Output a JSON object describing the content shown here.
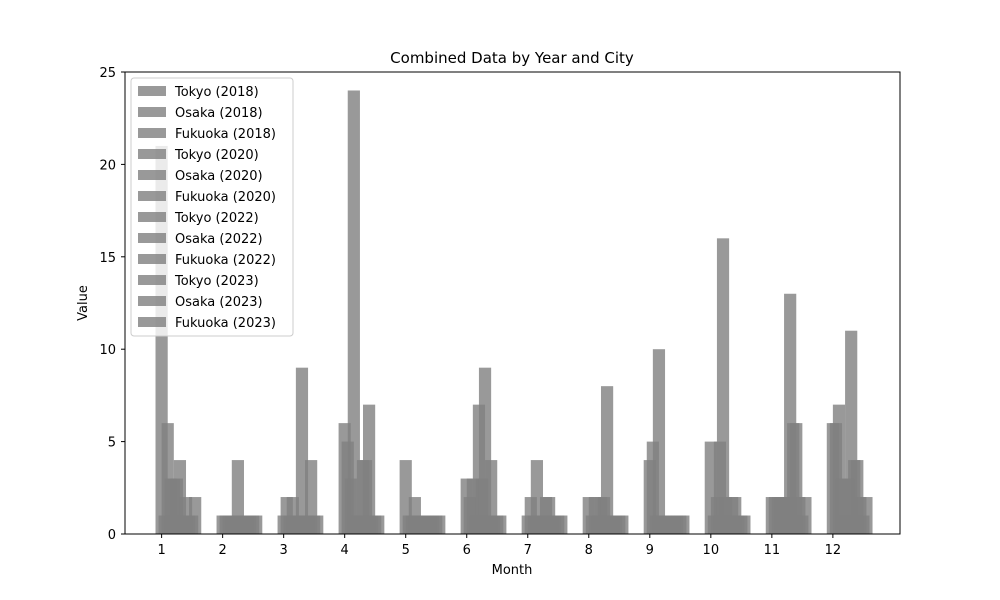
{
  "chart_data": {
    "type": "bar",
    "title": "Combined Data by Year and City",
    "xlabel": "Month",
    "ylabel": "Value",
    "ylim": [
      0,
      25
    ],
    "xlim": [
      0.4,
      13.1
    ],
    "yticks": [
      0,
      5,
      10,
      15,
      20,
      25
    ],
    "xticks": [
      1,
      2,
      3,
      4,
      5,
      6,
      7,
      8,
      9,
      10,
      11,
      12
    ],
    "bar_color": "#808080",
    "bar_opacity": 0.8,
    "grid": false,
    "legend_location": "upper left",
    "series_order": [
      "Tokyo (2018)",
      "Osaka (2018)",
      "Fukuoka (2018)",
      "Tokyo (2020)",
      "Osaka (2020)",
      "Fukuoka (2020)",
      "Tokyo (2022)",
      "Osaka (2022)",
      "Fukuoka (2022)",
      "Tokyo (2023)",
      "Osaka (2023)",
      "Fukuoka (2023)"
    ],
    "series": [
      {
        "name": "Tokyo (2018)",
        "values": [
          21,
          1,
          1,
          6,
          4,
          3,
          1,
          2,
          4,
          5,
          2,
          6
        ]
      },
      {
        "name": "Osaka (2018)",
        "values": [
          1,
          1,
          2,
          5,
          1,
          2,
          2,
          1,
          5,
          1,
          2,
          6
        ]
      },
      {
        "name": "Fukuoka (2018)",
        "values": [
          6,
          1,
          1,
          3,
          1,
          3,
          1,
          2,
          1,
          2,
          2,
          7
        ]
      },
      {
        "name": "Tokyo (2020)",
        "values": [
          3,
          1,
          2,
          24,
          2,
          1,
          4,
          1,
          10,
          5,
          2,
          3
        ]
      },
      {
        "name": "Osaka (2020)",
        "values": [
          3,
          1,
          1,
          1,
          1,
          7,
          1,
          2,
          1,
          16,
          2,
          1
        ]
      },
      {
        "name": "Fukuoka (2020)",
        "values": [
          3,
          4,
          1,
          1,
          1,
          3,
          1,
          2,
          1,
          2,
          2,
          3
        ]
      },
      {
        "name": "Tokyo (2022)",
        "values": [
          4,
          1,
          9,
          4,
          1,
          9,
          2,
          8,
          1,
          1,
          13,
          11
        ]
      },
      {
        "name": "Osaka (2022)",
        "values": [
          1,
          1,
          1,
          4,
          1,
          1,
          2,
          1,
          1,
          2,
          6,
          4
        ]
      },
      {
        "name": "Fukuoka (2022)",
        "values": [
          2,
          1,
          1,
          7,
          1,
          4,
          1,
          1,
          1,
          2,
          6,
          4
        ]
      },
      {
        "name": "Tokyo (2023)",
        "values": [
          1,
          1,
          4,
          1,
          1,
          1,
          1,
          1,
          1,
          1,
          2,
          2
        ]
      },
      {
        "name": "Osaka (2023)",
        "values": [
          1,
          1,
          1,
          1,
          1,
          1,
          1,
          1,
          1,
          1,
          1,
          1
        ]
      },
      {
        "name": "Fukuoka (2023)",
        "values": [
          2,
          1,
          1,
          1,
          1,
          1,
          1,
          1,
          1,
          1,
          2,
          2
        ]
      }
    ]
  }
}
